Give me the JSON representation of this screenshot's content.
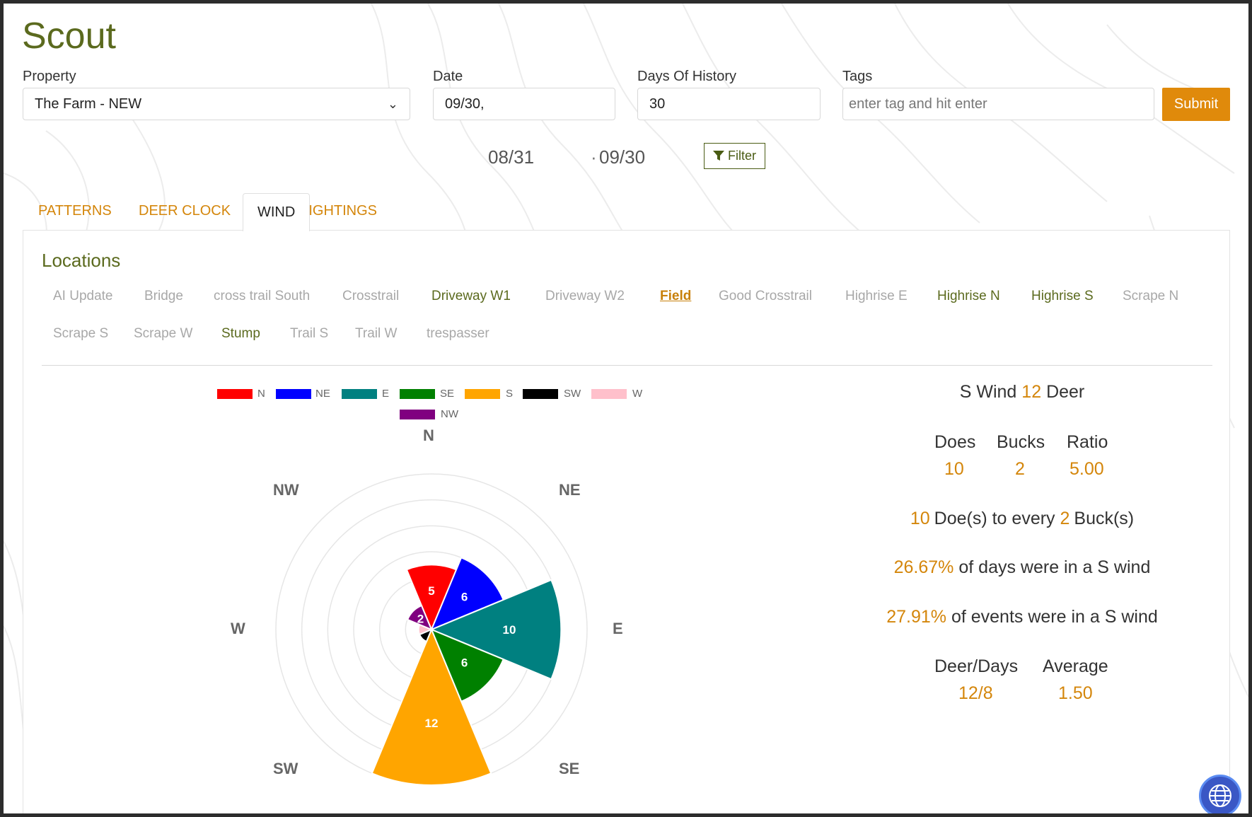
{
  "app": {
    "title": "Scout"
  },
  "filters": {
    "property": {
      "label": "Property",
      "value": "The Farm - NEW"
    },
    "date": {
      "label": "Date",
      "value": "09/30,"
    },
    "days_history": {
      "label": "Days Of History",
      "value": "30"
    },
    "tags": {
      "label": "Tags",
      "placeholder": "enter tag and hit enter"
    },
    "submit_label": "Submit",
    "range_start": "08/31",
    "range_end": "09/30",
    "filter_label": "Filter"
  },
  "tabs": [
    {
      "label": "PATTERNS",
      "active": false
    },
    {
      "label": "DEER CLOCK",
      "active": false
    },
    {
      "label": "WIND",
      "active": true
    },
    {
      "label": "SIGHTINGS",
      "active": false
    }
  ],
  "locations": {
    "title": "Locations",
    "items": [
      {
        "label": "AI Update",
        "state": "off"
      },
      {
        "label": "Bridge",
        "state": "off"
      },
      {
        "label": "cross trail South",
        "state": "off"
      },
      {
        "label": "Crosstrail",
        "state": "off"
      },
      {
        "label": "Driveway W1",
        "state": "on"
      },
      {
        "label": "Driveway W2",
        "state": "off"
      },
      {
        "label": "Field",
        "state": "selected"
      },
      {
        "label": "Good Crosstrail",
        "state": "off"
      },
      {
        "label": "Highrise E",
        "state": "off"
      },
      {
        "label": "Highrise N",
        "state": "on"
      },
      {
        "label": "Highrise S",
        "state": "on"
      },
      {
        "label": "Scrape N",
        "state": "off"
      },
      {
        "label": "Scrape S",
        "state": "off"
      },
      {
        "label": "Scrape W",
        "state": "off"
      },
      {
        "label": "Stump",
        "state": "on"
      },
      {
        "label": "Trail S",
        "state": "off"
      },
      {
        "label": "Trail W",
        "state": "off"
      },
      {
        "label": "trespasser",
        "state": "off"
      }
    ]
  },
  "chart_data": {
    "type": "polar-area",
    "directions": [
      "N",
      "NE",
      "E",
      "SE",
      "S",
      "SW",
      "W",
      "NW"
    ],
    "compass_labels": [
      "N",
      "NE",
      "E",
      "SE",
      "S",
      "SW",
      "W",
      "NW"
    ],
    "values": [
      5,
      6,
      10,
      6,
      12,
      1,
      1,
      2
    ],
    "colors": [
      "#ff0000",
      "#0000ff",
      "#008080",
      "#008000",
      "#ffa500",
      "#000000",
      "#ffc0cb",
      "#800080"
    ],
    "legend": [
      "N",
      "NE",
      "E",
      "SE",
      "S",
      "SW",
      "W",
      "NW"
    ],
    "legend_position": "top",
    "rings": 6,
    "rmax": 12
  },
  "stats": {
    "headline_prefix": "S Wind",
    "headline_count": "12",
    "headline_suffix": "Deer",
    "does_label": "Does",
    "bucks_label": "Bucks",
    "ratio_label": "Ratio",
    "does_value": "10",
    "bucks_value": "2",
    "ratio_value": "5.00",
    "ratio_line": {
      "does": "10",
      "text1": "Doe(s) to every",
      "bucks": "2",
      "text2": "Buck(s)"
    },
    "days_pct": "26.67%",
    "days_text": "of days were in a S wind",
    "events_pct": "27.91%",
    "events_text": "of events were in a S wind",
    "deer_days_label": "Deer/Days",
    "average_label": "Average",
    "deer_days_value": "12/8",
    "average_value": "1.50"
  }
}
